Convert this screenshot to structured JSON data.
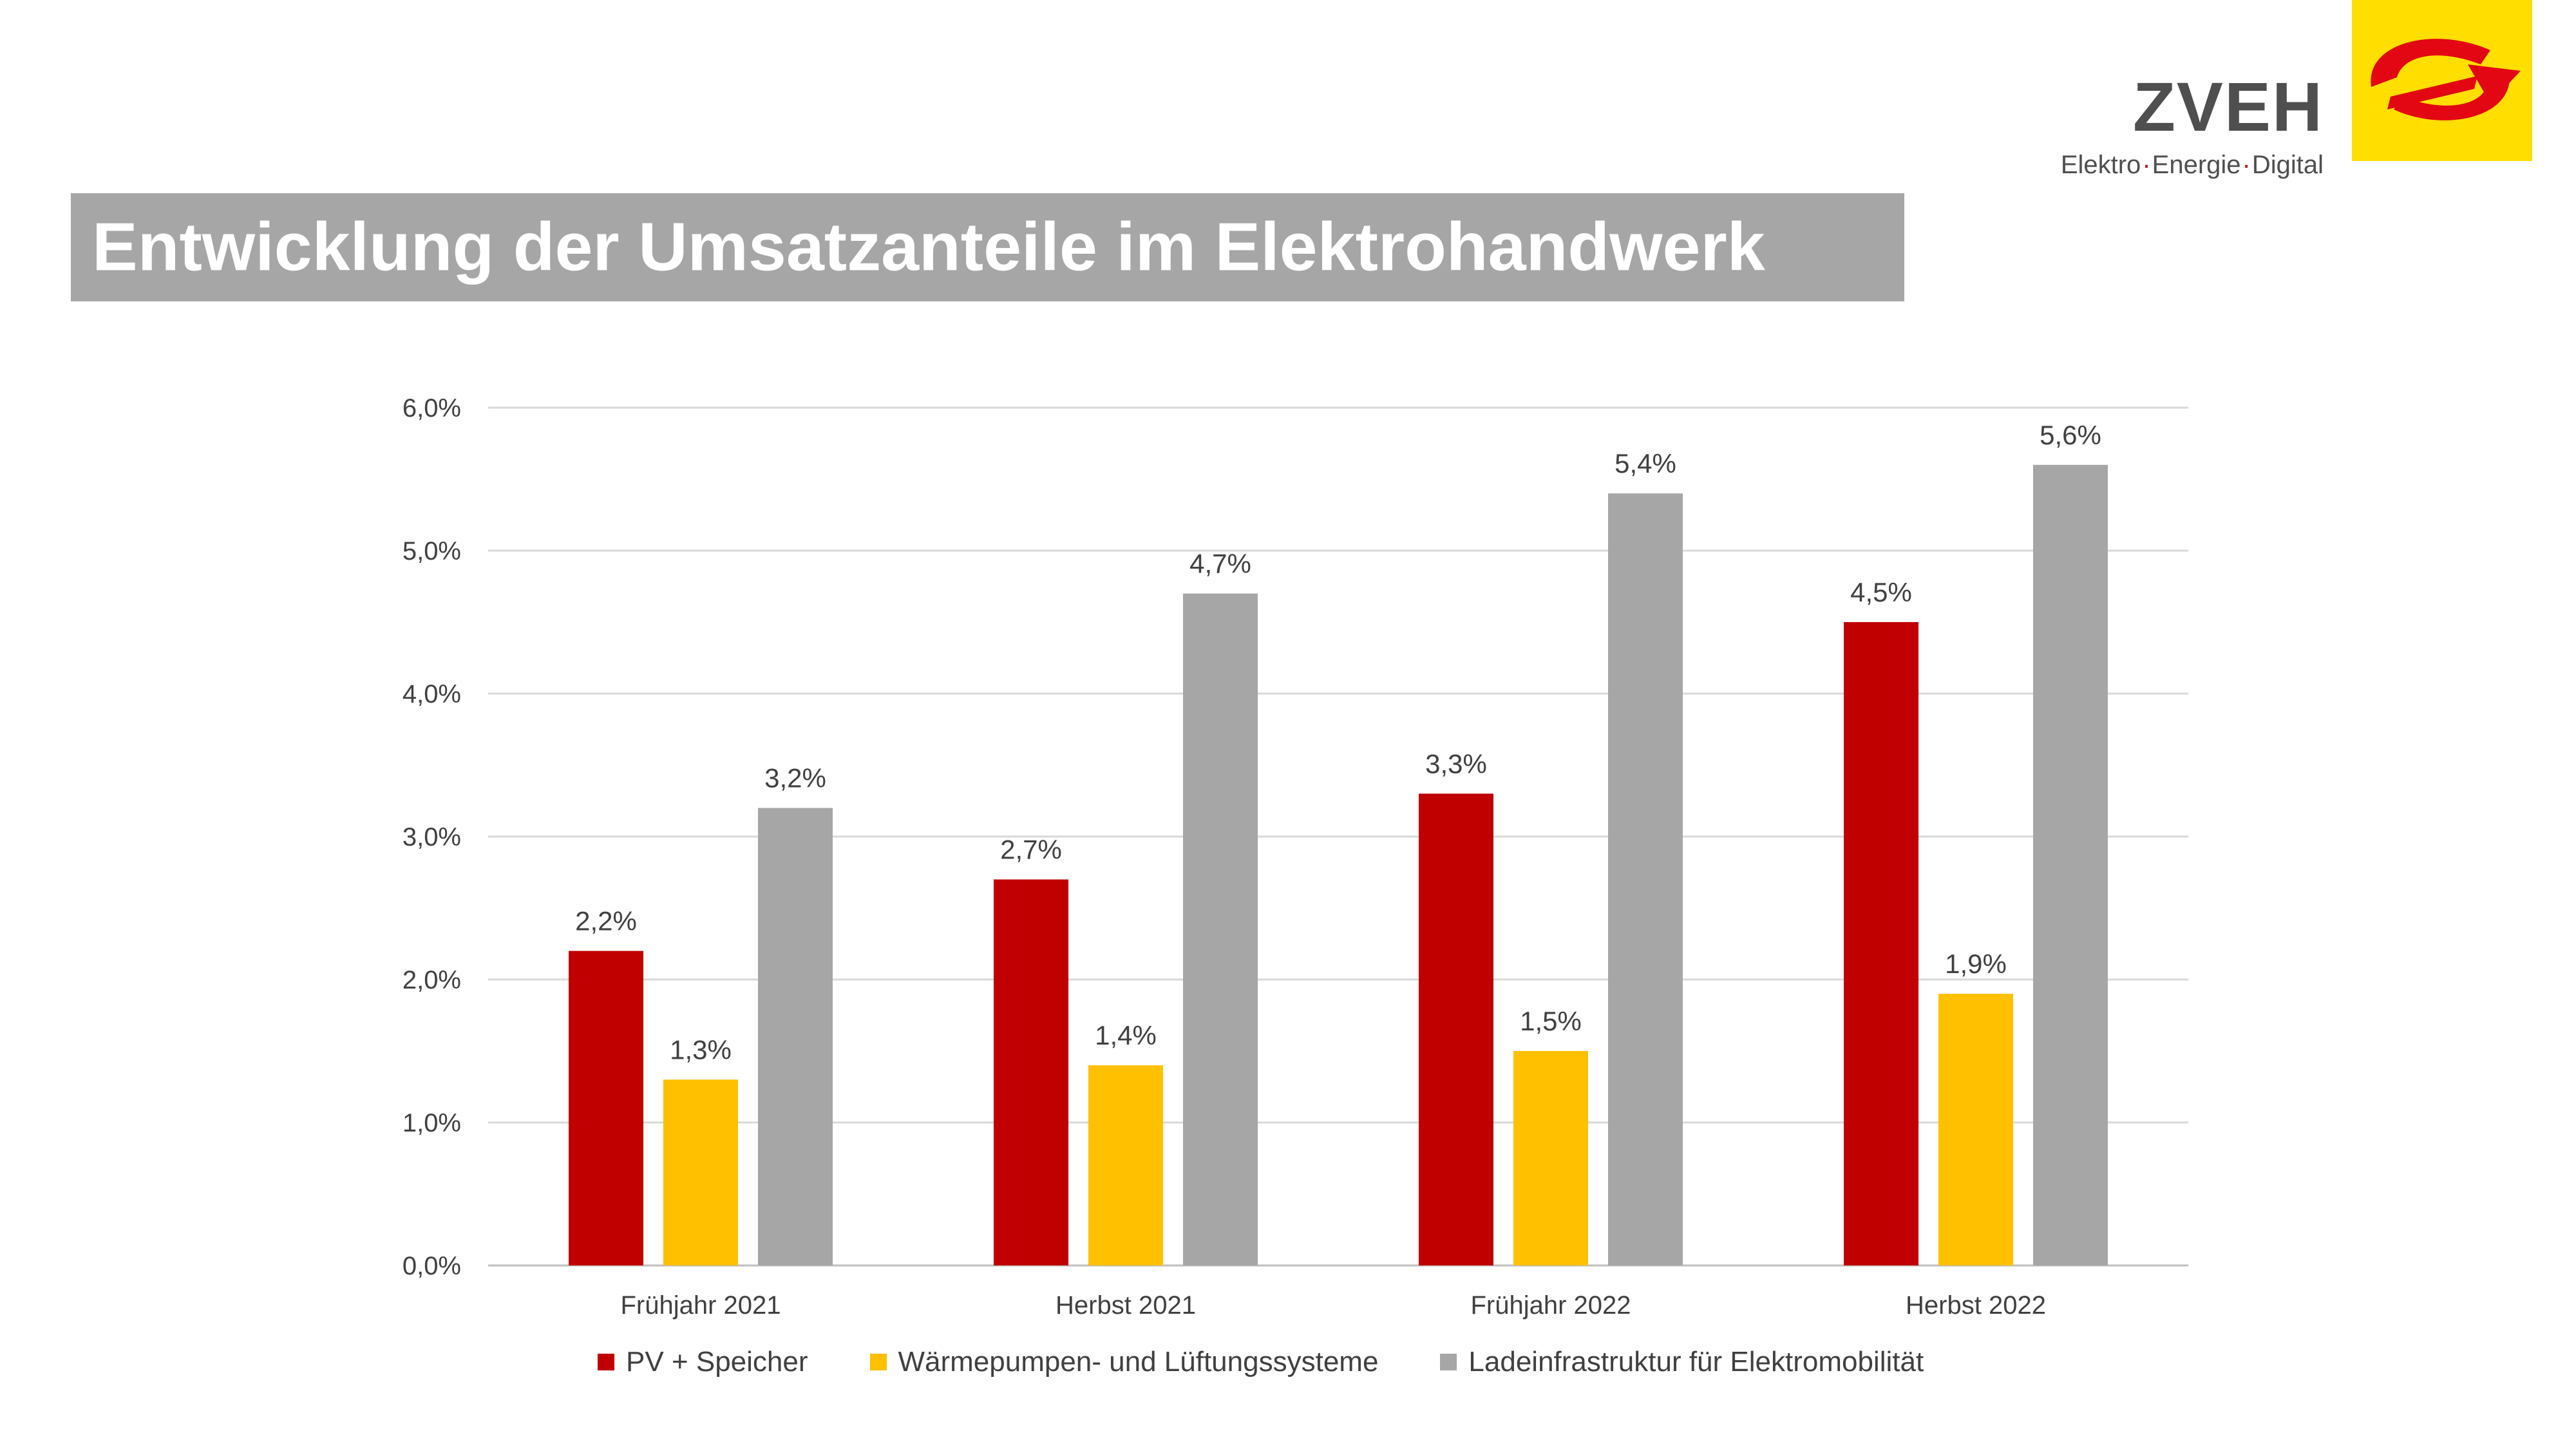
{
  "brand": {
    "name": "ZVEH",
    "tagline_parts": [
      "Elektro",
      "Energie",
      "Digital"
    ],
    "logo_colors": {
      "background": "#ffde00",
      "mark": "#e30613"
    }
  },
  "slide": {
    "title": "Entwicklung der Umsatzanteile im Elektrohandwerk"
  },
  "chart_data": {
    "type": "bar",
    "categories": [
      "Frühjahr 2021",
      "Herbst 2021",
      "Frühjahr 2022",
      "Herbst 2022"
    ],
    "series": [
      {
        "name": "PV + Speicher",
        "color": "#c00000",
        "values": [
          2.2,
          2.7,
          3.3,
          4.5
        ],
        "labels": [
          "2,2%",
          "2,7%",
          "3,3%",
          "4,5%"
        ]
      },
      {
        "name": "Wärmepumpen- und Lüftungssysteme",
        "color": "#ffc000",
        "values": [
          1.3,
          1.4,
          1.5,
          1.9
        ],
        "labels": [
          "1,3%",
          "1,4%",
          "1,5%",
          "1,9%"
        ]
      },
      {
        "name": "Ladeinfrastruktur für Elektromobilität",
        "color": "#a6a6a6",
        "values": [
          3.2,
          4.7,
          5.4,
          5.6
        ],
        "labels": [
          "3,2%",
          "4,7%",
          "5,4%",
          "5,6%"
        ]
      }
    ],
    "yticks": [
      "0,0%",
      "1,0%",
      "2,0%",
      "3,0%",
      "4,0%",
      "5,0%",
      "6,0%"
    ],
    "ylim": [
      0,
      6
    ],
    "grid": true,
    "legend": "bottom"
  }
}
